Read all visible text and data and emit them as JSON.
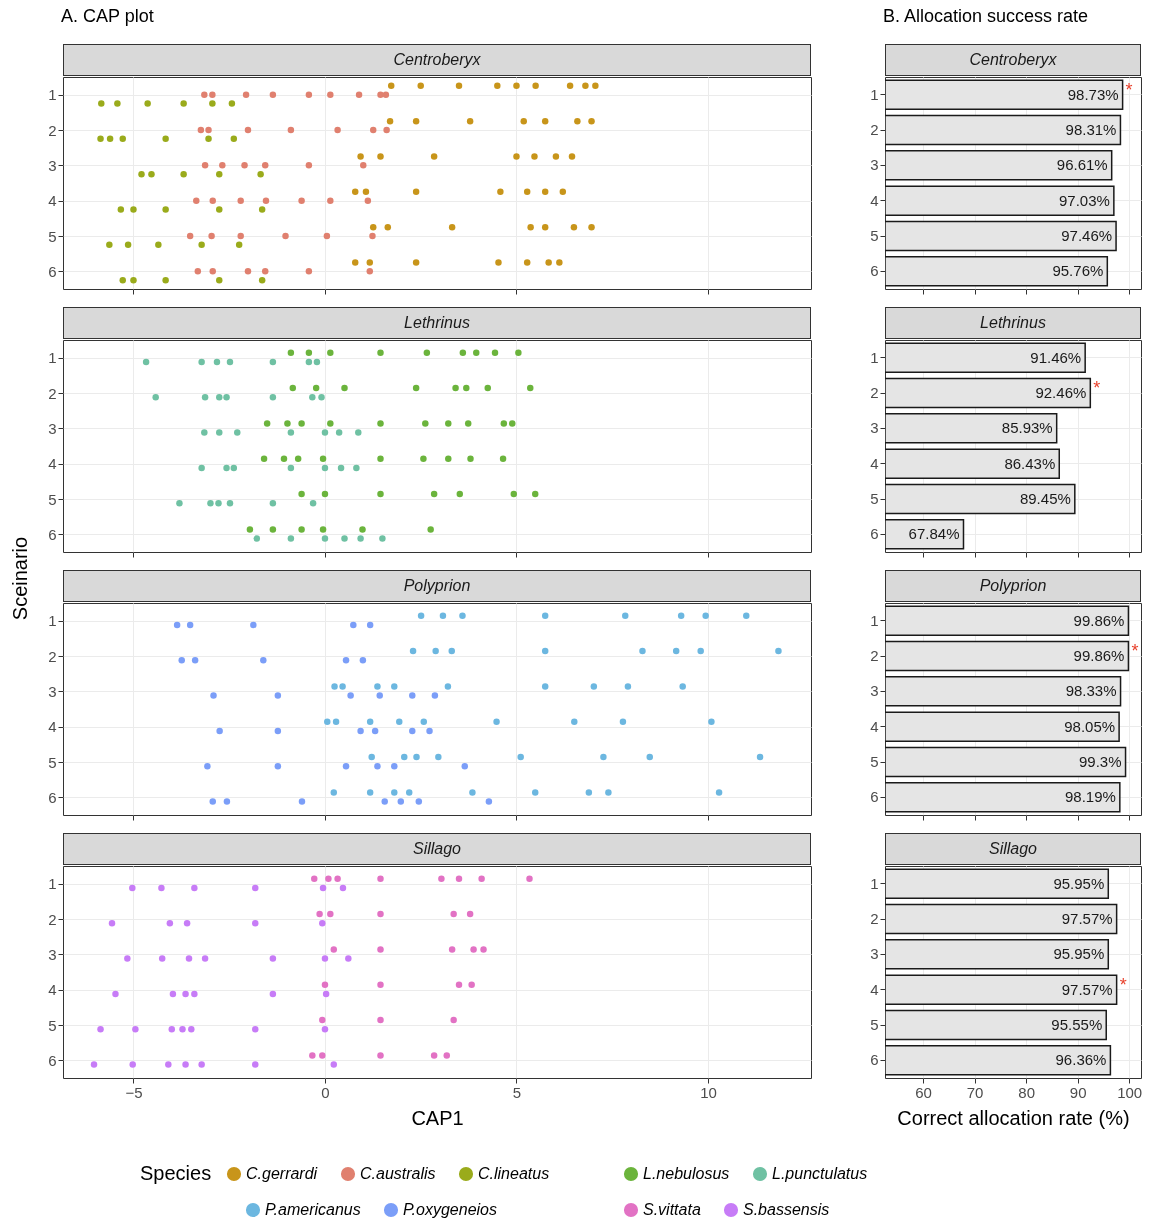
{
  "chart_data": [
    {
      "type": "scatter",
      "title": "Centroberyx",
      "legend": "bottom",
      "legend_title": "Species",
      "annotations": [
        "A. CAP plot"
      ],
      "xlim": [
        -6.84,
        12.69
      ],
      "xticks": [
        -5,
        0,
        5,
        10
      ],
      "ylim": [
        6.5,
        0.5
      ],
      "yticks": [
        1,
        2,
        3,
        4,
        5,
        6
      ],
      "grid": true,
      "marker": "circle",
      "tick_labels": "y",
      "series": [
        {
          "name": "C.gerrardi",
          "color": "#c8951a",
          "x": [
            1.73,
            2.5,
            3.5,
            4.5,
            5.0,
            5.5,
            6.4,
            6.8,
            7.06,
            1.7,
            2.38,
            3.79,
            5.19,
            5.75,
            6.59,
            6.96,
            0.93,
            1.45,
            2.85,
            5.0,
            5.47,
            6.03,
            6.45,
            0.79,
            1.07,
            2.38,
            4.58,
            5.28,
            5.75,
            6.21,
            1.26,
            1.64,
            3.32,
            5.37,
            5.75,
            6.5,
            6.96,
            0.79,
            1.17,
            2.38,
            4.53,
            5.28,
            5.84,
            6.12
          ],
          "values": [
            0.75,
            0.75,
            0.75,
            0.75,
            0.75,
            0.75,
            0.75,
            0.75,
            0.75,
            1.75,
            1.75,
            1.75,
            1.75,
            1.75,
            1.75,
            1.75,
            2.75,
            2.75,
            2.75,
            2.75,
            2.75,
            2.75,
            2.75,
            3.75,
            3.75,
            3.75,
            3.75,
            3.75,
            3.75,
            3.75,
            4.75,
            4.75,
            4.75,
            4.75,
            4.75,
            4.75,
            4.75,
            5.75,
            5.75,
            5.75,
            5.75,
            5.75,
            5.75,
            5.75
          ]
        },
        {
          "name": "C.australis",
          "color": "#e0806f",
          "x": [
            -3.15,
            -2.94,
            -2.06,
            -1.36,
            -0.42,
            0.14,
            0.89,
            1.45,
            1.59,
            -3.24,
            -3.04,
            -2.01,
            -0.89,
            0.33,
            1.26,
            1.61,
            -3.13,
            -2.68,
            -2.1,
            -1.56,
            -0.42,
            1.0,
            -3.36,
            -2.93,
            -2.2,
            -1.54,
            -0.61,
            0.14,
            1.12,
            -3.52,
            -2.96,
            -2.2,
            -1.03,
            0.05,
            1.24,
            -3.32,
            -2.93,
            -2.01,
            -1.56,
            -0.42,
            1.17
          ],
          "values": [
            1,
            1,
            1,
            1,
            1,
            1,
            1,
            1,
            1,
            2,
            2,
            2,
            2,
            2,
            2,
            2,
            3,
            3,
            3,
            3,
            3,
            3,
            4,
            4,
            4,
            4,
            4,
            4,
            4,
            5,
            5,
            5,
            5,
            5,
            5,
            6,
            6,
            6,
            6,
            6,
            6
          ]
        },
        {
          "name": "C.lineatus",
          "color": "#9aab1b",
          "x": [
            -5.84,
            -5.42,
            -4.63,
            -3.69,
            -2.94,
            -2.43,
            -5.86,
            -5.61,
            -5.28,
            -4.16,
            -3.04,
            -2.38,
            -4.79,
            -4.53,
            -3.69,
            -2.76,
            -1.68,
            -5.33,
            -5.0,
            -4.16,
            -2.76,
            -1.64,
            -5.63,
            -5.14,
            -4.35,
            -3.22,
            -2.24,
            -5.28,
            -5.0,
            -4.16,
            -2.76,
            -1.64
          ],
          "values": [
            1.25,
            1.25,
            1.25,
            1.25,
            1.25,
            1.25,
            2.25,
            2.25,
            2.25,
            2.25,
            2.25,
            2.25,
            3.25,
            3.25,
            3.25,
            3.25,
            3.25,
            4.25,
            4.25,
            4.25,
            4.25,
            4.25,
            5.25,
            5.25,
            5.25,
            5.25,
            5.25,
            6.25,
            6.25,
            6.25,
            6.25,
            6.25
          ]
        }
      ]
    },
    {
      "type": "bar",
      "orientation": "horizontal",
      "title": "Centroberyx",
      "annotations": [
        "B. Allocation success rate",
        {
          "text": "*",
          "x": 98.73,
          "y": "1"
        }
      ],
      "categories": [
        "1",
        "2",
        "3",
        "4",
        "5",
        "6"
      ],
      "values": [
        98.73,
        98.31,
        96.61,
        97.03,
        97.46,
        95.76
      ],
      "value_labels": [
        "98.73%",
        "98.31%",
        "96.61%",
        "97.03%",
        "97.46%",
        "95.76%"
      ],
      "color": "#e5e5e5",
      "xlim": [
        52.6,
        102.3
      ],
      "xticks": [
        60,
        70,
        80,
        90,
        100
      ],
      "grid": true,
      "tick_labels": "y"
    },
    {
      "type": "scatter",
      "title": "Lethrinus",
      "legend": "bottom",
      "xlim": [
        -6.84,
        12.69
      ],
      "xticks": [
        -5,
        0,
        5,
        10
      ],
      "ylim": [
        6.5,
        0.5
      ],
      "yticks": [
        1,
        2,
        3,
        4,
        5,
        6
      ],
      "grid": true,
      "marker": "circle",
      "tick_labels": "y",
      "series": [
        {
          "name": "L.nebulosus",
          "color": "#6bb43c",
          "x": [
            -0.89,
            -0.42,
            0.14,
            1.45,
            2.66,
            3.6,
            3.95,
            4.44,
            5.05,
            -0.84,
            -0.23,
            0.51,
            2.38,
            3.41,
            3.69,
            4.25,
            5.36,
            -1.51,
            -0.98,
            -0.61,
            0.14,
            1.45,
            2.62,
            3.22,
            3.74,
            4.67,
            4.89,
            -1.59,
            -1.07,
            -0.7,
            -0.05,
            1.45,
            2.57,
            3.22,
            3.8,
            4.65,
            -0.61,
            0,
            1.45,
            2.85,
            3.52,
            4.93,
            5.49,
            -1.96,
            -1.36,
            -0.61,
            -0.05,
            0.98,
            2.76
          ],
          "values": [
            0.86,
            0.86,
            0.86,
            0.86,
            0.86,
            0.86,
            0.86,
            0.86,
            0.86,
            1.86,
            1.86,
            1.86,
            1.86,
            1.86,
            1.86,
            1.86,
            1.86,
            2.86,
            2.86,
            2.86,
            2.86,
            2.86,
            2.86,
            2.86,
            2.86,
            2.86,
            2.86,
            3.86,
            3.86,
            3.86,
            3.86,
            3.86,
            3.86,
            3.86,
            3.86,
            3.86,
            4.86,
            4.86,
            4.86,
            4.86,
            4.86,
            4.86,
            4.86,
            5.86,
            5.86,
            5.86,
            5.86,
            5.86,
            5.86
          ]
        },
        {
          "name": "L.punctulatus",
          "color": "#6fc1a3",
          "x": [
            -4.67,
            -3.22,
            -2.82,
            -2.48,
            -1.36,
            -0.42,
            -0.21,
            -4.42,
            -3.13,
            -2.76,
            -2.57,
            -1.36,
            -0.33,
            -0.09,
            -3.15,
            -2.76,
            -2.29,
            -0.89,
            0,
            0.37,
            0.87,
            -3.22,
            -2.57,
            -2.38,
            -0.89,
            0,
            0.42,
            0.82,
            -3.8,
            -2.99,
            -2.78,
            -2.48,
            -1.36,
            -0.31,
            -1.78,
            -0.89,
            0,
            0.51,
            0.93,
            1.5
          ],
          "values": [
            1.12,
            1.12,
            1.12,
            1.12,
            1.12,
            1.12,
            1.12,
            2.12,
            2.12,
            2.12,
            2.12,
            2.12,
            2.12,
            2.12,
            3.12,
            3.12,
            3.12,
            3.12,
            3.12,
            3.12,
            3.12,
            4.12,
            4.12,
            4.12,
            4.12,
            4.12,
            4.12,
            4.12,
            5.12,
            5.12,
            5.12,
            5.12,
            5.12,
            5.12,
            6.12,
            6.12,
            6.12,
            6.12,
            6.12,
            6.12
          ]
        }
      ]
    },
    {
      "type": "bar",
      "orientation": "horizontal",
      "title": "Lethrinus",
      "annotations": [
        {
          "text": "*",
          "x": 92.46,
          "y": "2"
        }
      ],
      "categories": [
        "1",
        "2",
        "3",
        "4",
        "5",
        "6"
      ],
      "values": [
        91.46,
        92.46,
        85.93,
        86.43,
        89.45,
        67.84
      ],
      "value_labels": [
        "91.46%",
        "92.46%",
        "85.93%",
        "86.43%",
        "89.45%",
        "67.84%"
      ],
      "color": "#e5e5e5",
      "xlim": [
        52.6,
        102.3
      ],
      "xticks": [
        60,
        70,
        80,
        90,
        100
      ],
      "grid": true,
      "tick_labels": "y"
    },
    {
      "type": "scatter",
      "title": "Polyprion",
      "ylabel": "Sceinario",
      "legend": "bottom",
      "xlim": [
        -6.84,
        12.69
      ],
      "xticks": [
        -5,
        0,
        5,
        10
      ],
      "ylim": [
        6.5,
        0.5
      ],
      "yticks": [
        1,
        2,
        3,
        4,
        5,
        6
      ],
      "grid": true,
      "marker": "circle",
      "tick_labels": "y",
      "series": [
        {
          "name": "P.americanus",
          "color": "#6cb7e0",
          "x": [
            2.51,
            3.08,
            3.59,
            5.75,
            7.84,
            9.3,
            9.94,
            11.0,
            2.3,
            2.89,
            3.31,
            5.75,
            8.29,
            9.17,
            9.81,
            11.84,
            0.25,
            0.46,
            1.37,
            1.81,
            3.21,
            5.75,
            7.02,
            7.91,
            9.34,
            0.06,
            0.29,
            1.18,
            1.94,
            2.58,
            4.48,
            6.51,
            7.78,
            10.09,
            1.22,
            2.07,
            2.39,
            2.96,
            5.11,
            7.27,
            8.48,
            11.36,
            0.23,
            1.18,
            1.81,
            2.2,
            3.85,
            5.49,
            6.89,
            7.4,
            10.29
          ],
          "values": [
            0.86,
            0.86,
            0.86,
            0.86,
            0.86,
            0.86,
            0.86,
            0.86,
            1.86,
            1.86,
            1.86,
            1.86,
            1.86,
            1.86,
            1.86,
            1.86,
            2.86,
            2.86,
            2.86,
            2.86,
            2.86,
            2.86,
            2.86,
            2.86,
            2.86,
            3.86,
            3.86,
            3.86,
            3.86,
            3.86,
            3.86,
            3.86,
            3.86,
            3.86,
            4.86,
            4.86,
            4.86,
            4.86,
            4.86,
            4.86,
            4.86,
            4.86,
            5.86,
            5.86,
            5.86,
            5.86,
            5.86,
            5.86,
            5.86,
            5.86,
            5.86
          ]
        },
        {
          "name": "P.oxygeneios",
          "color": "#7b9ef8",
          "x": [
            -3.86,
            -3.52,
            -1.87,
            0.74,
            1.18,
            -3.74,
            -3.39,
            -1.61,
            0.55,
            0.99,
            -2.91,
            -1.23,
            0.67,
            1.43,
            2.28,
            2.87,
            -2.75,
            -1.23,
            0.93,
            1.31,
            2.28,
            2.73,
            -3.07,
            -1.23,
            0.55,
            1.37,
            1.81,
            3.65,
            -2.93,
            -2.56,
            -0.6,
            1.56,
            1.98,
            2.45,
            4.28
          ],
          "values": [
            1.12,
            1.12,
            1.12,
            1.12,
            1.12,
            2.12,
            2.12,
            2.12,
            2.12,
            2.12,
            3.12,
            3.12,
            3.12,
            3.12,
            3.12,
            3.12,
            4.12,
            4.12,
            4.12,
            4.12,
            4.12,
            4.12,
            5.12,
            5.12,
            5.12,
            5.12,
            5.12,
            5.12,
            6.12,
            6.12,
            6.12,
            6.12,
            6.12,
            6.12,
            6.12
          ]
        }
      ]
    },
    {
      "type": "bar",
      "orientation": "horizontal",
      "title": "Polyprion",
      "annotations": [
        {
          "text": "*",
          "x": 99.86,
          "y": "2"
        }
      ],
      "categories": [
        "1",
        "2",
        "3",
        "4",
        "5",
        "6"
      ],
      "values": [
        99.86,
        99.86,
        98.33,
        98.05,
        99.3,
        98.19
      ],
      "value_labels": [
        "99.86%",
        "99.86%",
        "98.33%",
        "98.05%",
        "99.3%",
        "98.19%"
      ],
      "color": "#e5e5e5",
      "xlim": [
        52.6,
        102.3
      ],
      "xticks": [
        60,
        70,
        80,
        90,
        100
      ],
      "grid": true,
      "tick_labels": "y"
    },
    {
      "type": "scatter",
      "title": "Sillago",
      "xlabel": "CAP1",
      "legend": "bottom",
      "xlim": [
        -6.84,
        12.69
      ],
      "xticks": [
        -5,
        0,
        5,
        10
      ],
      "ylim": [
        6.5,
        0.5
      ],
      "yticks": [
        1,
        2,
        3,
        4,
        5,
        6
      ],
      "grid": true,
      "marker": "circle",
      "series": [
        {
          "name": "S.vittata",
          "color": "#e272c4",
          "x": [
            -0.28,
            0.09,
            0.33,
            1.45,
            3.04,
            3.5,
            4.09,
            5.34,
            -0.14,
            0.14,
            1.45,
            3.36,
            3.79,
            0.23,
            1.45,
            3.32,
            3.88,
            4.14,
            0,
            1.45,
            3.5,
            3.83,
            -0.07,
            1.45,
            3.36,
            -0.33,
            -0.07,
            1.45,
            2.85,
            3.18
          ],
          "values": [
            0.86,
            0.86,
            0.86,
            0.86,
            0.86,
            0.86,
            0.86,
            0.86,
            1.86,
            1.86,
            1.86,
            1.86,
            1.86,
            2.86,
            2.86,
            2.86,
            2.86,
            2.86,
            3.86,
            3.86,
            3.86,
            3.86,
            4.86,
            4.86,
            4.86,
            5.86,
            5.86,
            5.86,
            5.86,
            5.86
          ]
        },
        {
          "name": "S.bassensis",
          "color": "#c77cf7",
          "x": [
            -5.03,
            -4.27,
            -3.41,
            -1.82,
            -0.05,
            0.47,
            -5.56,
            -4.05,
            -3.6,
            -1.82,
            -0.07,
            -5.16,
            -4.25,
            -3.55,
            -3.13,
            -1.36,
            0,
            0.61,
            -5.47,
            -3.97,
            -3.64,
            -3.41,
            -1.36,
            0.03,
            -5.86,
            -4.95,
            -4.0,
            -3.72,
            -3.49,
            -1.82,
            0,
            -6.03,
            -5.02,
            -4.09,
            -3.64,
            -3.22,
            -1.82,
            0.23
          ],
          "values": [
            1.12,
            1.12,
            1.12,
            1.12,
            1.12,
            1.12,
            2.12,
            2.12,
            2.12,
            2.12,
            2.12,
            3.12,
            3.12,
            3.12,
            3.12,
            3.12,
            3.12,
            3.12,
            4.12,
            4.12,
            4.12,
            4.12,
            4.12,
            4.12,
            5.12,
            5.12,
            5.12,
            5.12,
            5.12,
            5.12,
            5.12,
            6.12,
            6.12,
            6.12,
            6.12,
            6.12,
            6.12,
            6.12
          ]
        }
      ]
    },
    {
      "type": "bar",
      "orientation": "horizontal",
      "title": "Sillago",
      "xlabel": "Correct allocation rate (%)",
      "annotations": [
        {
          "text": "*",
          "x": 97.57,
          "y": "4"
        }
      ],
      "categories": [
        "1",
        "2",
        "3",
        "4",
        "5",
        "6"
      ],
      "values": [
        95.95,
        97.57,
        95.95,
        97.57,
        95.55,
        96.36
      ],
      "value_labels": [
        "95.95%",
        "97.57%",
        "95.95%",
        "97.57%",
        "95.55%",
        "96.36%"
      ],
      "color": "#e5e5e5",
      "xlim": [
        52.6,
        102.3
      ],
      "xticks": [
        60,
        70,
        80,
        90,
        100
      ],
      "grid": true
    }
  ]
}
